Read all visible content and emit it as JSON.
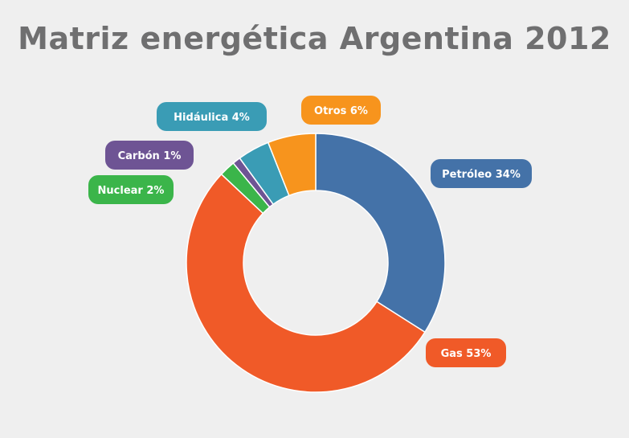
{
  "chart_data": {
    "type": "pie",
    "title": "Matriz energética Argentina 2012",
    "slices": [
      {
        "name": "Petróleo",
        "value": 34,
        "label": "Petróleo 34%",
        "color": "#4472a8"
      },
      {
        "name": "Gas",
        "value": 53,
        "label": "Gas 53%",
        "color": "#f05a28"
      },
      {
        "name": "Nuclear",
        "value": 2,
        "label": "Nuclear 2%",
        "color": "#3bb54a"
      },
      {
        "name": "Carbón",
        "value": 1,
        "label": "Carbón 1%",
        "color": "#6e5494"
      },
      {
        "name": "Hidáulica",
        "value": 4,
        "label": "Hidáulica 4%",
        "color": "#3a9cb5"
      },
      {
        "name": "Otros",
        "value": 6,
        "label": "Otros 6%",
        "color": "#f7941d"
      }
    ]
  }
}
